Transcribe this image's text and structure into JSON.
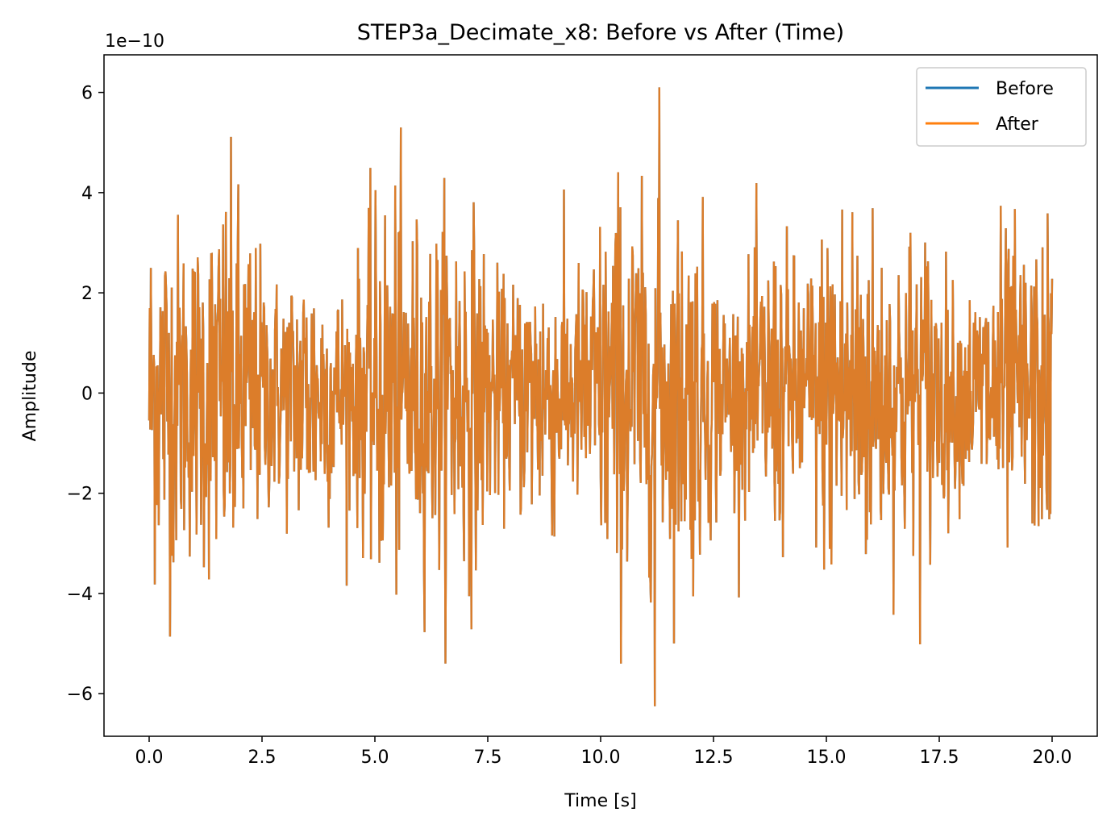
{
  "chart_data": {
    "type": "line",
    "title": "STEP3a_Decimate_x8: Before vs After (Time)",
    "xlabel": "Time [s]",
    "ylabel": "Amplitude",
    "offset_label": "1e−10",
    "xlim": [
      -1.0,
      21.0
    ],
    "ylim": [
      -6.85,
      6.75
    ],
    "x_ticks": [
      0.0,
      2.5,
      5.0,
      7.5,
      10.0,
      12.5,
      15.0,
      17.5,
      20.0
    ],
    "x_tick_labels": [
      "0.0",
      "2.5",
      "5.0",
      "7.5",
      "10.0",
      "12.5",
      "15.0",
      "17.5",
      "20.0"
    ],
    "y_ticks": [
      6,
      4,
      2,
      0,
      -2,
      -4,
      -6
    ],
    "y_tick_labels": [
      "6",
      "4",
      "2",
      "0",
      "−2",
      "−4",
      "−6"
    ],
    "grid": false,
    "legend_position": "upper right",
    "series": [
      {
        "name": "Before",
        "color": "#1f77b4"
      },
      {
        "name": "After",
        "color": "#ff7f0e"
      }
    ],
    "signal": {
      "description_unit": "amplitude x 1e-10",
      "x_start": 0.0,
      "x_end": 20.0,
      "max": 6.1,
      "max_at": 11.3,
      "min": -6.25,
      "min_at": 11.2
    },
    "overlap_color": "#dc7d2a"
  }
}
